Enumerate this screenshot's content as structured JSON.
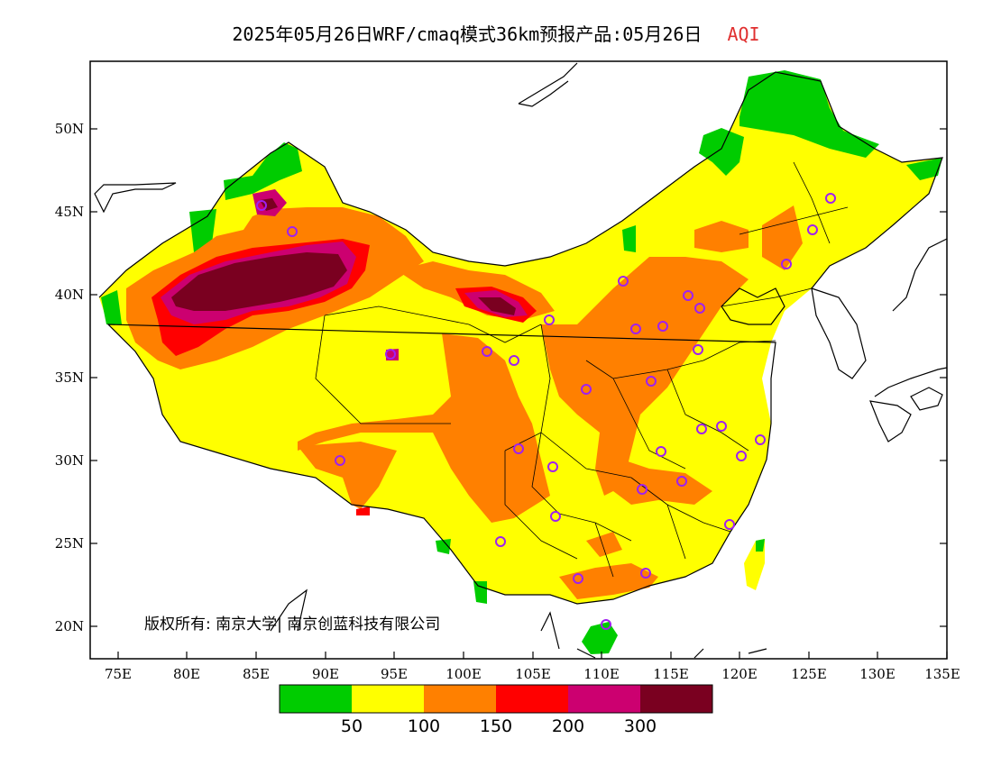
{
  "title": {
    "main": "2025年05月26日WRF/cmaq模式36km预报产品:05月26日",
    "variable": "AQI"
  },
  "axes": {
    "lat_labels": [
      "50N",
      "45N",
      "40N",
      "35N",
      "30N",
      "25N",
      "20N"
    ],
    "lon_labels": [
      "75E",
      "80E",
      "85E",
      "90E",
      "95E",
      "100E",
      "105E",
      "110E",
      "115E",
      "120E",
      "125E",
      "130E",
      "135E"
    ]
  },
  "legend": {
    "colors": [
      "#00cc00",
      "#ffff00",
      "#ff8000",
      "#ff0000",
      "#cc0070",
      "#7a0020"
    ],
    "labels": [
      "50",
      "100",
      "150",
      "200",
      "300"
    ]
  },
  "copyright": "版权所有: 南京大学| 南京创蓝科技有限公司",
  "colors": {
    "good": "#00cc00",
    "moderate": "#ffff00",
    "usg": "#ff8000",
    "unhealthy": "#ff0000",
    "very_unhealthy": "#cc0070",
    "hazardous": "#7a0020",
    "station_marker": "#a020f0"
  }
}
